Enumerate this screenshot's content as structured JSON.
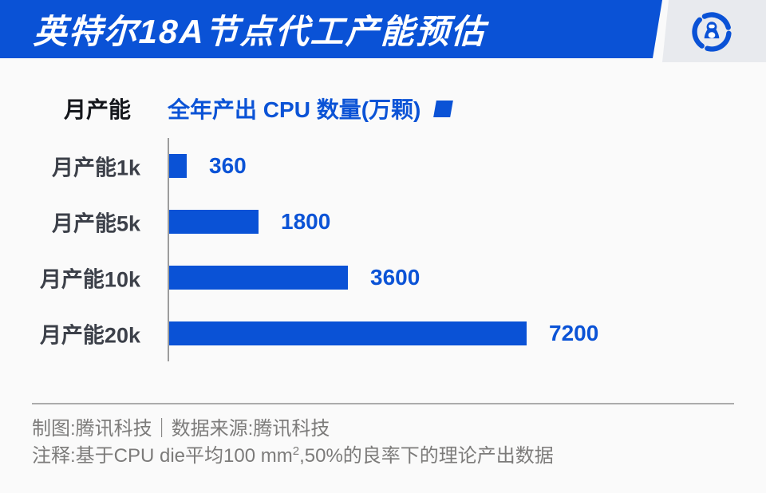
{
  "header": {
    "title": "英特尔18A节点代工产能预估"
  },
  "logo": {
    "name": "tencent-tech-penguin-logo",
    "color": "#0a52d6"
  },
  "legend": {
    "y_axis_label": "月产能",
    "series_label": "全年产出 CPU 数量(万颗)"
  },
  "chart_data": {
    "type": "bar",
    "orientation": "horizontal",
    "title": "英特尔18A节点代工产能预估",
    "categories": [
      "月产能1k",
      "月产能5k",
      "月产能10k",
      "月产能20k"
    ],
    "values": [
      360,
      1800,
      3600,
      7200
    ],
    "series_name": "全年产出 CPU 数量(万颗)",
    "xlabel": "全年产出 CPU 数量(万颗)",
    "ylabel": "月产能",
    "xlim": [
      0,
      7700
    ],
    "grid": false,
    "legend_position": "top",
    "bar_color": "#0a52d6",
    "value_label_color": "#0b53d6"
  },
  "footer": {
    "credit": "制图:腾讯科技｜数据来源:腾讯科技",
    "note_before_sup": "注释:基于CPU die平均100 mm",
    "note_sup": "2",
    "note_after_sup": ",50%的良率下的理论产出数据"
  },
  "colors": {
    "banner_blue": "#0a52d6",
    "bar_blue": "#0a52d6",
    "accent_text_blue": "#0b53d6",
    "background": "#fafafa",
    "corner_gray": "#e8eaee",
    "category_text": "#3c4049",
    "footer_text": "#7c7b7a",
    "axis_gray": "#9c9c9c"
  }
}
